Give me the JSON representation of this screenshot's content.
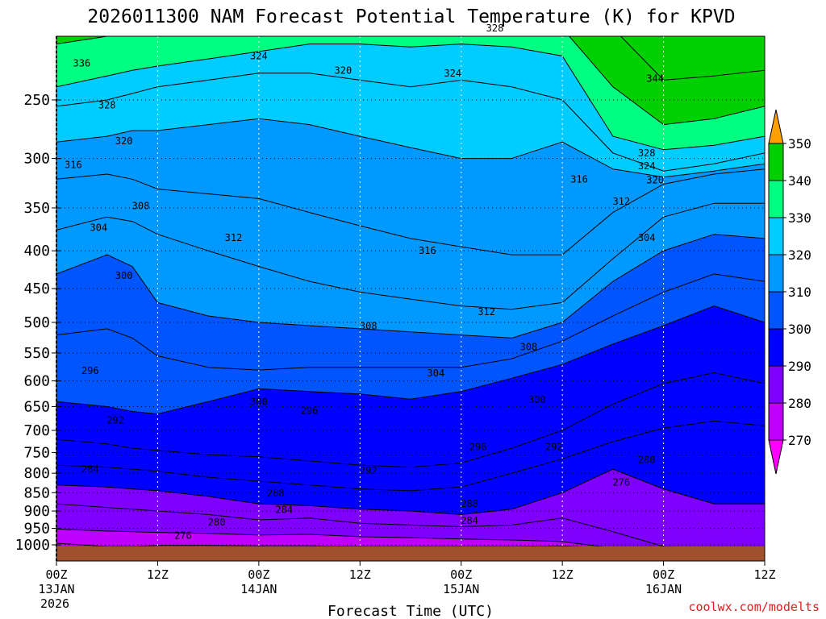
{
  "chart_data": {
    "type": "heatmap",
    "title": "2026011300 NAM Forecast Potential Temperature (K) for KPVD",
    "xlabel": "Forecast Time (UTC)",
    "ylabel": "",
    "credit": "coolwx.com/modelts",
    "x_ticks": [
      {
        "hour": 0,
        "label": "00Z",
        "sub1": "13JAN",
        "sub2": "2026"
      },
      {
        "hour": 12,
        "label": "12Z",
        "sub1": "",
        "sub2": ""
      },
      {
        "hour": 24,
        "label": "00Z",
        "sub1": "14JAN",
        "sub2": ""
      },
      {
        "hour": 36,
        "label": "12Z",
        "sub1": "",
        "sub2": ""
      },
      {
        "hour": 48,
        "label": "00Z",
        "sub1": "15JAN",
        "sub2": ""
      },
      {
        "hour": 60,
        "label": "12Z",
        "sub1": "",
        "sub2": ""
      },
      {
        "hour": 72,
        "label": "00Z",
        "sub1": "16JAN",
        "sub2": ""
      },
      {
        "hour": 84,
        "label": "12Z",
        "sub1": "",
        "sub2": ""
      }
    ],
    "xlim": [
      0,
      84
    ],
    "y_ticks": [
      250,
      300,
      350,
      400,
      450,
      500,
      550,
      600,
      650,
      700,
      750,
      800,
      850,
      900,
      950,
      1000
    ],
    "ylim": [
      1010,
      200
    ],
    "colorbar": {
      "levels": [
        270,
        280,
        290,
        300,
        310,
        320,
        330,
        340,
        350
      ],
      "colors": [
        "#ff00ff",
        "#c000ff",
        "#8000ff",
        "#0000ff",
        "#0055ff",
        "#0099ff",
        "#00ccff",
        "#00ff80",
        "#00d000",
        "#ffff00",
        "#ffa000"
      ]
    },
    "profile_hours": [
      0,
      6,
      9,
      12,
      18,
      24,
      30,
      36,
      42,
      48,
      54,
      60,
      66,
      72,
      78,
      84
    ],
    "contour_levels": [
      276,
      280,
      284,
      288,
      292,
      296,
      300,
      304,
      308,
      312,
      316,
      320,
      324,
      328,
      336,
      344
    ],
    "contour_pressures": [
      [
        995,
        1005,
        1005,
        1002,
        1002,
        1003,
        1003,
        1005,
        1005,
        1005,
        1005,
        1003,
        1010,
        1010,
        1010,
        1010
      ],
      [
        952,
        958,
        960,
        962,
        965,
        970,
        968,
        975,
        978,
        982,
        985,
        990,
        1010,
        1010,
        1010,
        1010
      ],
      [
        880,
        890,
        895,
        900,
        910,
        925,
        920,
        935,
        940,
        945,
        940,
        920,
        960,
        1005,
        1010,
        1010
      ],
      [
        830,
        835,
        840,
        845,
        860,
        880,
        885,
        895,
        900,
        910,
        895,
        850,
        790,
        840,
        880,
        880
      ],
      [
        780,
        785,
        790,
        795,
        810,
        820,
        830,
        840,
        845,
        835,
        800,
        765,
        725,
        695,
        680,
        690
      ],
      [
        720,
        730,
        740,
        745,
        755,
        760,
        770,
        780,
        785,
        775,
        740,
        700,
        645,
        605,
        585,
        605
      ],
      [
        640,
        650,
        660,
        665,
        640,
        615,
        620,
        625,
        635,
        620,
        595,
        570,
        535,
        505,
        475,
        500
      ],
      [
        520,
        510,
        525,
        555,
        575,
        580,
        575,
        575,
        575,
        575,
        560,
        530,
        490,
        455,
        430,
        440
      ],
      [
        430,
        405,
        420,
        470,
        490,
        500,
        505,
        510,
        515,
        520,
        525,
        500,
        440,
        400,
        380,
        385
      ],
      [
        375,
        360,
        365,
        380,
        400,
        420,
        440,
        455,
        465,
        475,
        480,
        470,
        410,
        360,
        345,
        345
      ],
      [
        320,
        315,
        320,
        330,
        335,
        340,
        355,
        370,
        385,
        395,
        405,
        405,
        355,
        325,
        315,
        310
      ],
      [
        285,
        280,
        275,
        275,
        270,
        265,
        270,
        280,
        290,
        300,
        300,
        285,
        310,
        318,
        312,
        305
      ],
      [
        255,
        250,
        245,
        240,
        235,
        230,
        230,
        235,
        240,
        235,
        240,
        250,
        295,
        312,
        305,
        295
      ],
      [
        240,
        232,
        228,
        225,
        220,
        215,
        210,
        210,
        212,
        210,
        212,
        218,
        280,
        292,
        288,
        280
      ],
      [
        210,
        205,
        200,
        195,
        195,
        195,
        195,
        200,
        200,
        198,
        195,
        200,
        240,
        270,
        265,
        255
      ],
      [
        200,
        200,
        200,
        200,
        200,
        200,
        200,
        200,
        200,
        200,
        200,
        200,
        200,
        235,
        232,
        228
      ]
    ],
    "contour_labels": [
      {
        "text": "336",
        "hour": 3,
        "p": 223
      },
      {
        "text": "324",
        "hour": 24,
        "p": 218
      },
      {
        "text": "320",
        "hour": 34,
        "p": 228
      },
      {
        "text": "328",
        "hour": 52,
        "p": 200
      },
      {
        "text": "324",
        "hour": 47,
        "p": 230
      },
      {
        "text": "344",
        "hour": 71,
        "p": 234
      },
      {
        "text": "328",
        "hour": 6,
        "p": 254
      },
      {
        "text": "320",
        "hour": 8,
        "p": 284
      },
      {
        "text": "316",
        "hour": 2,
        "p": 306
      },
      {
        "text": "316",
        "hour": 62,
        "p": 320
      },
      {
        "text": "328",
        "hour": 70,
        "p": 295
      },
      {
        "text": "324",
        "hour": 70,
        "p": 307
      },
      {
        "text": "320",
        "hour": 71,
        "p": 321
      },
      {
        "text": "312",
        "hour": 67,
        "p": 343
      },
      {
        "text": "308",
        "hour": 10,
        "p": 348
      },
      {
        "text": "304",
        "hour": 5,
        "p": 372
      },
      {
        "text": "312",
        "hour": 21,
        "p": 384
      },
      {
        "text": "304",
        "hour": 70,
        "p": 384
      },
      {
        "text": "316",
        "hour": 44,
        "p": 400
      },
      {
        "text": "300",
        "hour": 8,
        "p": 432
      },
      {
        "text": "312",
        "hour": 51,
        "p": 484
      },
      {
        "text": "308",
        "hour": 37,
        "p": 506
      },
      {
        "text": "308",
        "hour": 56,
        "p": 540
      },
      {
        "text": "296",
        "hour": 4,
        "p": 581
      },
      {
        "text": "304",
        "hour": 45,
        "p": 586
      },
      {
        "text": "300",
        "hour": 24,
        "p": 640
      },
      {
        "text": "300",
        "hour": 57,
        "p": 636
      },
      {
        "text": "296",
        "hour": 30,
        "p": 658
      },
      {
        "text": "292",
        "hour": 7,
        "p": 678
      },
      {
        "text": "296",
        "hour": 50,
        "p": 737
      },
      {
        "text": "292",
        "hour": 59,
        "p": 737
      },
      {
        "text": "284",
        "hour": 4,
        "p": 790
      },
      {
        "text": "292",
        "hour": 37,
        "p": 794
      },
      {
        "text": "280",
        "hour": 70,
        "p": 767
      },
      {
        "text": "276",
        "hour": 67,
        "p": 823
      },
      {
        "text": "288",
        "hour": 26,
        "p": 851
      },
      {
        "text": "288",
        "hour": 49,
        "p": 880
      },
      {
        "text": "284",
        "hour": 27,
        "p": 896
      },
      {
        "text": "284",
        "hour": 49,
        "p": 927
      },
      {
        "text": "280",
        "hour": 19,
        "p": 932
      },
      {
        "text": "276",
        "hour": 15,
        "p": 971
      }
    ]
  }
}
